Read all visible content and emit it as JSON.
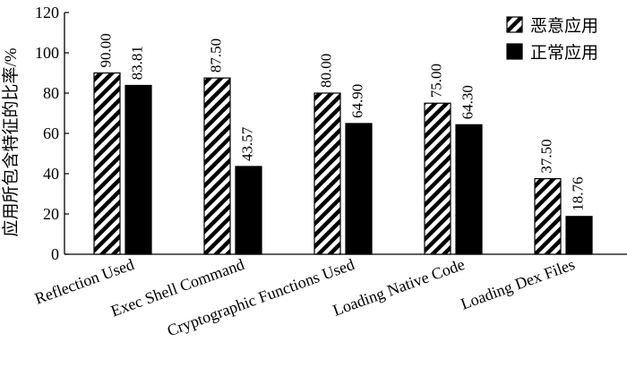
{
  "chart_data": {
    "type": "bar",
    "ylabel": "应用所包含特征的比率/%",
    "ylim": [
      0,
      120
    ],
    "yticks": [
      0,
      20,
      40,
      60,
      80,
      100,
      120
    ],
    "grid": false,
    "legend_position": "top-right",
    "categories": [
      "Reflection Used",
      "Exec Shell Command",
      "Cryptographic Functions Used",
      "Loading Native Code",
      "Loading Dex Files"
    ],
    "series": [
      {
        "name": "恶意应用",
        "pattern": "diagonal-hatch",
        "color": "#000000",
        "values": [
          90.0,
          87.5,
          80.0,
          75.0,
          37.5
        ],
        "labels": [
          "90.00",
          "87.50",
          "80.00",
          "75.00",
          "37.50"
        ]
      },
      {
        "name": "正常应用",
        "pattern": "solid",
        "color": "#000000",
        "values": [
          83.81,
          43.57,
          64.9,
          64.3,
          18.76
        ],
        "labels": [
          "83.81",
          "43.57",
          "64.90",
          "64.30",
          "18.76"
        ]
      }
    ]
  }
}
